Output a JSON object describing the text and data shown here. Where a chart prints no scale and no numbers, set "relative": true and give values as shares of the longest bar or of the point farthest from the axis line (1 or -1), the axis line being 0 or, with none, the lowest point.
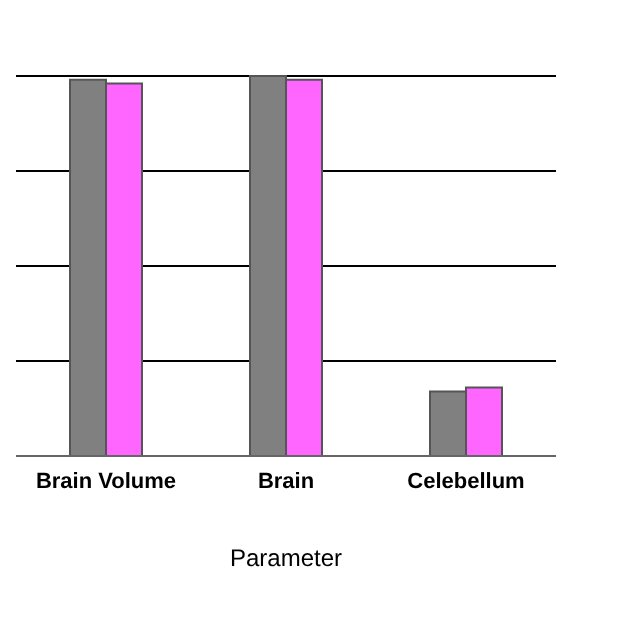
{
  "chart_data": {
    "type": "bar",
    "relative": true,
    "xlabel": "Parameter",
    "categories": [
      "Brain Volume",
      "Brain",
      "Celebellum"
    ],
    "grid": "y",
    "series": [
      {
        "color": "#808080",
        "values": [
          0.99,
          1,
          0.17
        ]
      },
      {
        "color": "#ff66ff",
        "values": [
          0.98,
          0.99,
          0.18
        ]
      }
    ]
  }
}
